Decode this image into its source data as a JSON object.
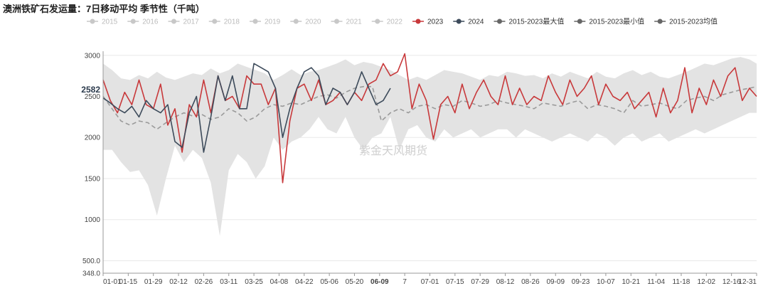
{
  "title": "澳洲铁矿石发运量：7日移动平均 季节性（千吨）",
  "watermark": "紫金天风期货",
  "colors": {
    "series_2023": "#c8393b",
    "series_2024": "#3d4b5b",
    "inactive": "#c8c8c8",
    "band": "#e3e3e3",
    "avg": "#9a9a9a",
    "stat": "#555555",
    "grid": "#e8e8e8"
  },
  "chart_data": {
    "type": "line",
    "title": "澳洲铁矿石发运量：7日移动平均 季节性（千吨）",
    "xlabel": "",
    "ylabel": "",
    "ylim": [
      348,
      3050
    ],
    "y_ticks": [
      348,
      500,
      1000,
      1500,
      2000,
      2500,
      3000
    ],
    "y_tick_labels": [
      "348.0",
      "500.0",
      "1000",
      "1500",
      "2000",
      "2500",
      "3000"
    ],
    "x_tick_labels": [
      "01-01",
      "01-15",
      "01-29",
      "02-12",
      "02-26",
      "03-11",
      "03-25",
      "04-08",
      "04-22",
      "05-06",
      "05-20",
      "06-09",
      "7",
      "07-01",
      "07-15",
      "07-29",
      "08-12",
      "08-26",
      "09-09",
      "09-23",
      "10-07",
      "10-21",
      "11-04",
      "11-18",
      "12-02",
      "12-16",
      "12-31"
    ],
    "highlight_tick": "06-09",
    "current_value_label": "2582",
    "grid": true,
    "legend_position": "top",
    "legend": [
      {
        "name": "2015",
        "active": false,
        "color": "#c8c8c8"
      },
      {
        "name": "2016",
        "active": false,
        "color": "#c8c8c8"
      },
      {
        "name": "2017",
        "active": false,
        "color": "#c8c8c8"
      },
      {
        "name": "2018",
        "active": false,
        "color": "#c8c8c8"
      },
      {
        "name": "2019",
        "active": false,
        "color": "#c8c8c8"
      },
      {
        "name": "2020",
        "active": false,
        "color": "#c8c8c8"
      },
      {
        "name": "2021",
        "active": false,
        "color": "#c8c8c8"
      },
      {
        "name": "2022",
        "active": false,
        "color": "#c8c8c8"
      },
      {
        "name": "2023",
        "active": true,
        "color": "#c8393b"
      },
      {
        "name": "2024",
        "active": true,
        "color": "#3d4b5b"
      },
      {
        "name": "2015-2023最大值",
        "active": true,
        "color": "#666666"
      },
      {
        "name": "2015-2023最小值",
        "active": true,
        "color": "#666666"
      },
      {
        "name": "2015-2023均值",
        "active": true,
        "color": "#666666"
      }
    ],
    "series": [
      {
        "name": "2015-2023最大值",
        "role": "band_max",
        "x": [
          0,
          5,
          10,
          15,
          20,
          25,
          30,
          35,
          40,
          45,
          50,
          55,
          60,
          65,
          70,
          75,
          80,
          85,
          90,
          95,
          100,
          105,
          110,
          115,
          120,
          125,
          130,
          135,
          140,
          145,
          150,
          155,
          160,
          165,
          170,
          175,
          180,
          185,
          190,
          195,
          200,
          205,
          210,
          215,
          220,
          225,
          230,
          235,
          240,
          245,
          250,
          255,
          260,
          265,
          270,
          275,
          280,
          285,
          290,
          295,
          300,
          305,
          310,
          315,
          320,
          325,
          330,
          335,
          340,
          345,
          350,
          355,
          360,
          364
        ],
        "values": [
          2900,
          2820,
          2720,
          2700,
          2760,
          2720,
          2800,
          2730,
          2700,
          2740,
          2780,
          2760,
          2840,
          2780,
          2820,
          2900,
          2860,
          2820,
          2780,
          2700,
          2760,
          2830,
          2760,
          2800,
          2820,
          2860,
          2900,
          2950,
          2880,
          2920,
          2900,
          2860,
          2820,
          2760,
          2700,
          2740,
          2700,
          2760,
          2820,
          2800,
          2780,
          2740,
          2700,
          2760,
          2740,
          2800,
          2780,
          2750,
          2760,
          2720,
          2780,
          2740,
          2800,
          2760,
          2720,
          2800,
          2740,
          2720,
          2780,
          2820,
          2760,
          2800,
          2740,
          2720,
          2760,
          2800,
          2850,
          2900,
          2880,
          2920,
          2960,
          2980,
          2950,
          2900
        ]
      },
      {
        "name": "2015-2023最小值",
        "role": "band_min",
        "x": [
          0,
          5,
          10,
          15,
          20,
          25,
          30,
          35,
          40,
          45,
          50,
          55,
          60,
          65,
          70,
          75,
          80,
          85,
          90,
          95,
          100,
          105,
          110,
          115,
          120,
          125,
          130,
          135,
          140,
          145,
          150,
          155,
          160,
          165,
          170,
          175,
          180,
          185,
          190,
          195,
          200,
          205,
          210,
          215,
          220,
          225,
          230,
          235,
          240,
          245,
          250,
          255,
          260,
          265,
          270,
          275,
          280,
          285,
          290,
          295,
          300,
          305,
          310,
          315,
          320,
          325,
          330,
          335,
          340,
          345,
          350,
          355,
          360,
          364
        ],
        "values": [
          1850,
          1850,
          1700,
          1580,
          1600,
          1420,
          1050,
          1500,
          1900,
          1700,
          1850,
          1750,
          1450,
          800,
          1600,
          1800,
          1700,
          1500,
          1650,
          2000,
          1850,
          1950,
          2000,
          2100,
          2250,
          2100,
          2050,
          2250,
          2000,
          1850,
          2000,
          2050,
          2250,
          1850,
          2100,
          2150,
          2000,
          1950,
          2100,
          2000,
          2050,
          2100,
          2000,
          2050,
          2100,
          2100,
          2000,
          2100,
          2050,
          2000,
          1950,
          2000,
          2050,
          2000,
          1950,
          2050,
          2000,
          1900,
          2000,
          2050,
          1950,
          2000,
          2050,
          1950,
          2000,
          2050,
          2100,
          2050,
          2100,
          2150,
          2200,
          2250,
          2300,
          2300
        ]
      },
      {
        "name": "2015-2023均值",
        "role": "average",
        "x": [
          0,
          5,
          10,
          15,
          20,
          25,
          30,
          35,
          40,
          45,
          50,
          55,
          60,
          65,
          70,
          75,
          80,
          85,
          90,
          95,
          100,
          105,
          110,
          115,
          120,
          125,
          130,
          135,
          140,
          145,
          150,
          155,
          160,
          165,
          170,
          175,
          180,
          185,
          190,
          195,
          200,
          205,
          210,
          215,
          220,
          225,
          230,
          235,
          240,
          245,
          250,
          255,
          260,
          265,
          270,
          275,
          280,
          285,
          290,
          295,
          300,
          305,
          310,
          315,
          320,
          325,
          330,
          335,
          340,
          345,
          350,
          355,
          360,
          364
        ],
        "values": [
          2500,
          2350,
          2200,
          2150,
          2200,
          2180,
          2100,
          2180,
          2250,
          2300,
          2260,
          2280,
          2220,
          2250,
          2350,
          2300,
          2200,
          2250,
          2350,
          2400,
          2380,
          2420,
          2400,
          2450,
          2500,
          2520,
          2480,
          2550,
          2600,
          2620,
          2620,
          2200,
          2300,
          2350,
          2300,
          2380,
          2400,
          2350,
          2400,
          2380,
          2450,
          2420,
          2380,
          2400,
          2450,
          2420,
          2400,
          2380,
          2350,
          2420,
          2400,
          2380,
          2420,
          2450,
          2350,
          2400,
          2380,
          2350,
          2300,
          2450,
          2380,
          2400,
          2420,
          2380,
          2350,
          2450,
          2480,
          2500,
          2450,
          2520,
          2550,
          2580,
          2600,
          2620
        ]
      },
      {
        "name": "2023",
        "role": "line",
        "x": [
          0,
          4,
          8,
          12,
          16,
          20,
          24,
          28,
          32,
          36,
          40,
          44,
          48,
          52,
          56,
          60,
          64,
          68,
          72,
          76,
          80,
          84,
          88,
          92,
          96,
          100,
          104,
          108,
          112,
          116,
          120,
          124,
          128,
          132,
          136,
          140,
          144,
          148,
          152,
          156,
          160,
          164,
          168,
          172,
          176,
          180,
          184,
          188,
          192,
          196,
          200,
          204,
          208,
          212,
          216,
          220,
          224,
          228,
          232,
          236,
          240,
          244,
          248,
          252,
          256,
          260,
          264,
          268,
          272,
          276,
          280,
          284,
          288,
          292,
          296,
          300,
          304,
          308,
          312,
          316,
          320,
          324,
          328,
          332,
          336,
          340,
          344,
          348,
          352,
          356,
          360,
          364
        ],
        "values": [
          2700,
          2450,
          2300,
          2550,
          2400,
          2700,
          2400,
          2350,
          2650,
          2150,
          2350,
          1820,
          2400,
          2250,
          2700,
          2300,
          2750,
          2450,
          2500,
          2350,
          2750,
          2650,
          2650,
          2400,
          2600,
          1450,
          2200,
          2600,
          2650,
          2450,
          2700,
          2400,
          2450,
          2550,
          2400,
          2550,
          2450,
          2650,
          2700,
          2900,
          2750,
          2800,
          3020,
          2350,
          2650,
          2450,
          1980,
          2400,
          2500,
          2300,
          2650,
          2350,
          2550,
          2700,
          2500,
          2400,
          2750,
          2400,
          2600,
          2400,
          2500,
          2450,
          2750,
          2550,
          2400,
          2700,
          2500,
          2600,
          2750,
          2400,
          2650,
          2500,
          2450,
          2550,
          2350,
          2450,
          2550,
          2250,
          2600,
          2300,
          2450,
          2850,
          2300,
          2600,
          2400,
          2700,
          2500,
          2750,
          2850,
          2450,
          2600,
          2500
        ]
      },
      {
        "name": "2024",
        "role": "line",
        "x": [
          0,
          4,
          8,
          12,
          16,
          20,
          24,
          28,
          32,
          36,
          40,
          44,
          48,
          52,
          56,
          60,
          64,
          68,
          72,
          76,
          80,
          84,
          88,
          92,
          96,
          100,
          104,
          108,
          112,
          116,
          120,
          124,
          128,
          132,
          136,
          140,
          144,
          148,
          152,
          156,
          160
        ],
        "values": [
          2480,
          2420,
          2350,
          2300,
          2380,
          2250,
          2450,
          2350,
          2300,
          2400,
          1950,
          1880,
          2300,
          2500,
          1820,
          2250,
          2750,
          2450,
          2750,
          2350,
          2350,
          2900,
          2850,
          2800,
          2600,
          2000,
          2350,
          2600,
          2800,
          2850,
          2750,
          2400,
          2600,
          2550,
          2400,
          2550,
          2800,
          2600,
          2400,
          2450,
          2600
        ]
      }
    ]
  }
}
